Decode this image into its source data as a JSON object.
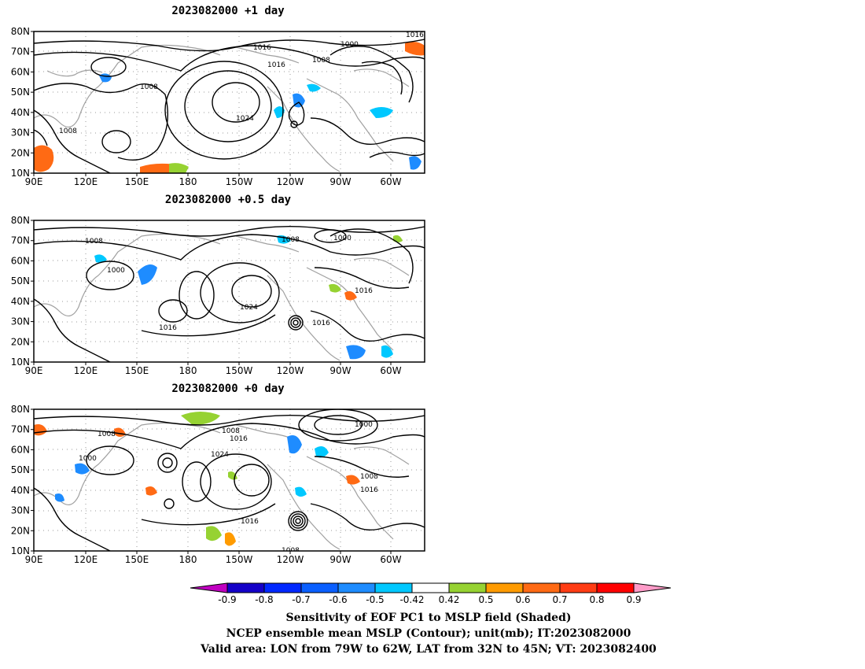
{
  "panels": [
    {
      "title": "2023082000  +1 day",
      "contour_labels": [
        "1016",
        "1000",
        "1016",
        "1008",
        "1016",
        "1008",
        "1024",
        "1008"
      ]
    },
    {
      "title": "2023082000  +0.5 day",
      "contour_labels": [
        "1008",
        "1008",
        "1000",
        "1000",
        "1016",
        "1024",
        "1016",
        "1016"
      ]
    },
    {
      "title": "2023082000  +0 day",
      "contour_labels": [
        "1008",
        "1008",
        "1016",
        "1000",
        "1000",
        "1024",
        "1008",
        "1016",
        "1016",
        "1008"
      ]
    }
  ],
  "lat_labels": [
    "80N",
    "70N",
    "60N",
    "50N",
    "40N",
    "30N",
    "20N",
    "10N"
  ],
  "lon_labels": [
    "90E",
    "120E",
    "150E",
    "180",
    "150W",
    "120W",
    "90W",
    "60W"
  ],
  "colorbar": {
    "labels": [
      "-0.9",
      "-0.8",
      "-0.7",
      "-0.6",
      "-0.5",
      "-0.42",
      "0.42",
      "0.5",
      "0.6",
      "0.7",
      "0.8",
      "0.9"
    ],
    "colors": [
      "#c000c0",
      "#1400c8",
      "#0028ff",
      "#0a5fff",
      "#1e8cff",
      "#00c8ff",
      "#ffffff",
      "#96d232",
      "#ff9b00",
      "#ff6a14",
      "#ff3c14",
      "#ff0000",
      "#ff9bc8"
    ]
  },
  "caption": {
    "line1": "Sensitivity of EOF PC1 to MSLP field (Shaded)",
    "line2": "NCEP ensemble mean MSLP (Contour); unit(mb); IT:2023082000",
    "line3": "Valid area: LON from 79W to 62W, LAT from 32N to 45N; VT: 2023082400"
  }
}
